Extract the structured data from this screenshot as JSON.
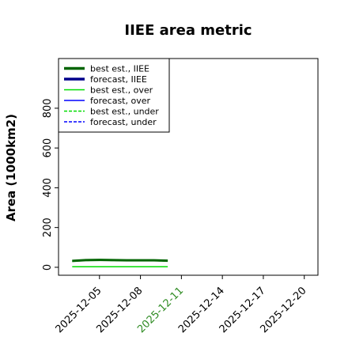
{
  "chart_data": {
    "type": "line",
    "title": "IIEE area metric",
    "xlabel": "",
    "ylabel": "Area (1000km2)",
    "x_ticks": [
      "2025-12-05",
      "2025-12-08",
      "2025-12-11",
      "2025-12-14",
      "2025-12-17",
      "2025-12-20"
    ],
    "highlight_tick": "2025-12-11",
    "highlight_color": "#2e8b22",
    "y_ticks": [
      0,
      200,
      400,
      600,
      800
    ],
    "xlim": [
      "2025-12-02",
      "2025-12-21"
    ],
    "ylim": [
      -40,
      1050
    ],
    "grid": false,
    "legend_position": "top-left",
    "series": [
      {
        "name": "best est., IIEE",
        "color": "#006400",
        "style": "solid",
        "width": "thick",
        "x": [
          "2025-12-03",
          "2025-12-04",
          "2025-12-05",
          "2025-12-06",
          "2025-12-07",
          "2025-12-08",
          "2025-12-09",
          "2025-12-10"
        ],
        "values": [
          32,
          36,
          37,
          36,
          35,
          35,
          35,
          33
        ]
      },
      {
        "name": "forecast, IIEE",
        "color": "#00008b",
        "style": "solid",
        "width": "thick",
        "x": [],
        "values": []
      },
      {
        "name": "best est., over",
        "color": "#00dd00",
        "style": "solid",
        "width": "thin",
        "x": [
          "2025-12-03",
          "2025-12-04",
          "2025-12-05",
          "2025-12-06",
          "2025-12-07",
          "2025-12-08",
          "2025-12-09",
          "2025-12-10"
        ],
        "values": [
          3,
          3,
          3,
          3,
          3,
          3,
          3,
          3
        ]
      },
      {
        "name": "forecast, over",
        "color": "#0000ff",
        "style": "solid",
        "width": "thin",
        "x": [],
        "values": []
      },
      {
        "name": "best est., under",
        "color": "#00dd00",
        "style": "dashed",
        "width": "thin",
        "x": [
          "2025-12-03",
          "2025-12-04",
          "2025-12-05",
          "2025-12-06",
          "2025-12-07",
          "2025-12-08",
          "2025-12-09",
          "2025-12-10"
        ],
        "values": [
          30,
          34,
          35,
          34,
          33,
          33,
          33,
          31
        ]
      },
      {
        "name": "forecast, under",
        "color": "#0000ff",
        "style": "dashed",
        "width": "thin",
        "x": [],
        "values": []
      }
    ]
  }
}
